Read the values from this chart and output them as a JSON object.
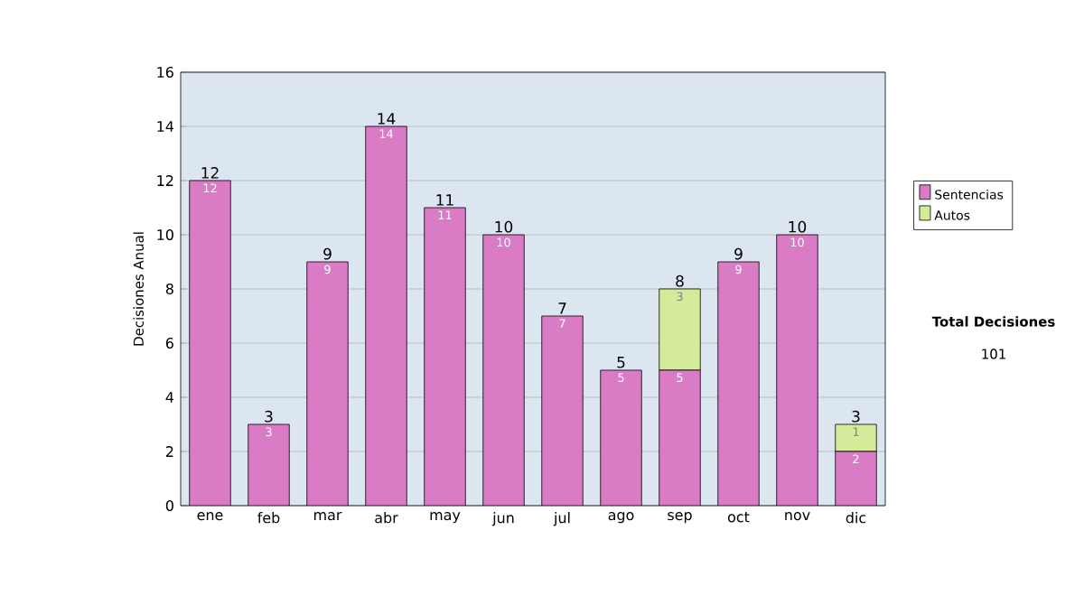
{
  "chart_data": {
    "type": "bar",
    "stacked": true,
    "ylabel": "Decisiones Anual",
    "categories": [
      "ene",
      "feb",
      "mar",
      "abr",
      "may",
      "jun",
      "jul",
      "ago",
      "sep",
      "oct",
      "nov",
      "dic"
    ],
    "series": [
      {
        "name": "Sentencias",
        "color": "#da7cc5",
        "values": [
          12,
          3,
          9,
          14,
          11,
          10,
          7,
          5,
          5,
          9,
          10,
          2
        ],
        "value_labels": [
          "12",
          "3",
          "9",
          "14",
          "11",
          "10",
          "7",
          "5",
          "5",
          "9",
          "10",
          "2"
        ]
      },
      {
        "name": "Autos",
        "color": "#d4eb9a",
        "values": [
          0,
          0,
          0,
          0,
          0,
          0,
          0,
          0,
          3,
          0,
          0,
          1
        ],
        "value_labels": [
          null,
          null,
          null,
          null,
          null,
          null,
          null,
          null,
          "3",
          null,
          null,
          "1"
        ]
      }
    ],
    "totals": [
      "12",
      "3",
      "9",
      "14",
      "11",
      "10",
      "7",
      "5",
      "8",
      "9",
      "10",
      "3"
    ],
    "ylim": [
      0,
      16
    ],
    "yticks": [
      0,
      2,
      4,
      6,
      8,
      10,
      12,
      14,
      16
    ],
    "grid": "y",
    "legend": "right",
    "annotations": [
      "Total Decisiones",
      "101"
    ]
  }
}
